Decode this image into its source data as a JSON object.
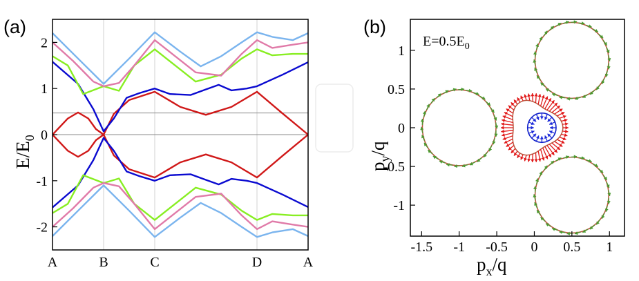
{
  "figure": {
    "panel_a_label": "(a)",
    "panel_b_label": "(b)"
  },
  "chart_data": [
    {
      "type": "line",
      "panel": "(a)",
      "title": "",
      "xlabel": "",
      "ylabel_main": "E/E",
      "ylabel_sub": "0",
      "x_ticks": [
        "A",
        "B",
        "C",
        "D",
        "A"
      ],
      "x_tick_positions": [
        0,
        1,
        2,
        4,
        5
      ],
      "xlim": [
        0,
        5
      ],
      "y_ticks": [
        -2,
        -1,
        0,
        1,
        2
      ],
      "ylim": [
        -2.5,
        2.5
      ],
      "vertical_grid_at": [
        1,
        2,
        4
      ],
      "horizontal_ref_lines": [
        0,
        0.47
      ],
      "series": [
        {
          "name": "band-red-upper",
          "color": "#d01818",
          "x": [
            0,
            0.3,
            0.5,
            0.7,
            0.85,
            1,
            1.2,
            1.5,
            2,
            2.5,
            3,
            3.5,
            4,
            4.5,
            5
          ],
          "y": [
            0,
            0.35,
            0.48,
            0.35,
            0.12,
            0,
            0.45,
            0.75,
            0.93,
            0.6,
            0.43,
            0.6,
            0.93,
            0.46,
            0
          ]
        },
        {
          "name": "band-red-lower",
          "color": "#d01818",
          "x": [
            0,
            0.3,
            0.5,
            0.7,
            0.85,
            1,
            1.2,
            1.5,
            2,
            2.5,
            3,
            3.5,
            4,
            4.5,
            5
          ],
          "y": [
            0,
            -0.35,
            -0.48,
            -0.35,
            -0.12,
            0,
            -0.45,
            -0.75,
            -0.93,
            -0.6,
            -0.43,
            -0.6,
            -0.93,
            -0.46,
            0
          ]
        },
        {
          "name": "band-blue-upper",
          "color": "#0a0ad0",
          "x": [
            0,
            0.5,
            0.8,
            1,
            1.2,
            1.45,
            1.7,
            2,
            2.3,
            2.7,
            3,
            3.25,
            3.5,
            3.8,
            4,
            4.5,
            5
          ],
          "y": [
            1.58,
            1.1,
            0.55,
            0.07,
            0.35,
            0.8,
            0.9,
            1.0,
            0.88,
            0.86,
            0.98,
            1.08,
            0.96,
            1.0,
            1.05,
            1.3,
            1.57
          ]
        },
        {
          "name": "band-blue-lower",
          "color": "#0a0ad0",
          "x": [
            0,
            0.5,
            0.8,
            1,
            1.2,
            1.45,
            1.7,
            2,
            2.3,
            2.7,
            3,
            3.25,
            3.5,
            3.8,
            4,
            4.5,
            5
          ],
          "y": [
            -1.58,
            -1.1,
            -0.55,
            -0.07,
            -0.35,
            -0.8,
            -0.9,
            -1.0,
            -0.88,
            -0.86,
            -0.98,
            -1.08,
            -0.96,
            -1.0,
            -1.05,
            -1.3,
            -1.57
          ]
        },
        {
          "name": "band-green-upper",
          "color": "#88ee22",
          "x": [
            0,
            0.3,
            0.6,
            1,
            1.3,
            1.6,
            2,
            2.4,
            2.8,
            3.3,
            3.7,
            4,
            4.3,
            4.7,
            5
          ],
          "y": [
            1.7,
            1.5,
            0.88,
            1.05,
            0.95,
            1.5,
            1.85,
            1.5,
            1.15,
            1.3,
            1.65,
            1.85,
            1.72,
            1.75,
            1.75
          ]
        },
        {
          "name": "band-green-lower",
          "color": "#88ee22",
          "x": [
            0,
            0.3,
            0.6,
            1,
            1.3,
            1.6,
            2,
            2.4,
            2.8,
            3.3,
            3.7,
            4,
            4.3,
            4.7,
            5
          ],
          "y": [
            -1.7,
            -1.5,
            -0.88,
            -1.05,
            -0.95,
            -1.5,
            -1.85,
            -1.5,
            -1.15,
            -1.3,
            -1.65,
            -1.85,
            -1.72,
            -1.75,
            -1.75
          ]
        },
        {
          "name": "band-pink-upper",
          "color": "#e07aa8",
          "x": [
            0,
            0.4,
            0.8,
            1,
            1.3,
            1.6,
            2,
            2.4,
            2.8,
            3.3,
            3.7,
            4,
            4.3,
            4.7,
            5
          ],
          "y": [
            2.0,
            1.6,
            1.15,
            1.05,
            1.12,
            1.5,
            2.05,
            1.7,
            1.35,
            1.28,
            1.75,
            2.05,
            1.88,
            1.95,
            2.0
          ]
        },
        {
          "name": "band-pink-lower",
          "color": "#e07aa8",
          "x": [
            0,
            0.4,
            0.8,
            1,
            1.3,
            1.6,
            2,
            2.4,
            2.8,
            3.3,
            3.7,
            4,
            4.3,
            4.7,
            5
          ],
          "y": [
            -2.0,
            -1.6,
            -1.15,
            -1.05,
            -1.12,
            -1.5,
            -2.05,
            -1.7,
            -1.35,
            -1.28,
            -1.75,
            -2.05,
            -1.88,
            -1.95,
            -2.0
          ]
        },
        {
          "name": "band-lightblue-upper",
          "color": "#7ab4ee",
          "x": [
            0,
            0.5,
            1,
            1.5,
            2,
            2.5,
            2.9,
            3.3,
            3.7,
            4,
            4.3,
            4.7,
            5
          ],
          "y": [
            2.2,
            1.65,
            1.1,
            1.65,
            2.22,
            1.8,
            1.48,
            1.7,
            2.0,
            2.22,
            2.12,
            2.05,
            2.2
          ]
        },
        {
          "name": "band-lightblue-lower",
          "color": "#7ab4ee",
          "x": [
            0,
            0.5,
            1,
            1.5,
            2,
            2.5,
            2.9,
            3.3,
            3.7,
            4,
            4.3,
            4.7,
            5
          ],
          "y": [
            -2.2,
            -1.65,
            -1.1,
            -1.65,
            -2.22,
            -1.8,
            -1.48,
            -1.7,
            -2.0,
            -2.22,
            -2.12,
            -2.05,
            -2.2
          ]
        }
      ]
    },
    {
      "type": "scatter",
      "panel": "(b)",
      "title": "",
      "annotation_main": "E=0.5E",
      "annotation_sub": "0",
      "xlabel_main": "p",
      "xlabel_sub": "x",
      "xlabel_tail": "/q",
      "ylabel_main": "p",
      "ylabel_sub": "y",
      "ylabel_tail": "/q",
      "x_ticks": [
        "-1.5",
        "-1",
        "-0.5",
        "0",
        "0.5",
        "1"
      ],
      "x_tick_values": [
        -1.5,
        -1,
        -0.5,
        0,
        0.5,
        1
      ],
      "y_ticks": [
        "-1",
        "-0.5",
        "0",
        "0.5",
        "1"
      ],
      "y_tick_values": [
        -1,
        -0.5,
        0,
        0.5,
        1
      ],
      "xlim": [
        -1.65,
        1.2
      ],
      "ylim": [
        -1.4,
        1.4
      ],
      "contours": [
        {
          "name": "outer-lobe-top",
          "color": "#b85a40",
          "center": [
            0.5,
            0.87
          ],
          "radius": 0.49,
          "arrow_color": "#4a9a30"
        },
        {
          "name": "outer-lobe-left",
          "color": "#b85a40",
          "center": [
            -1.0,
            0.0
          ],
          "radius": 0.49,
          "arrow_color": "#4a9a30"
        },
        {
          "name": "outer-lobe-bottom",
          "color": "#b85a40",
          "center": [
            0.5,
            -0.87
          ],
          "radius": 0.49,
          "arrow_color": "#4a9a30"
        },
        {
          "name": "middle-trefoil",
          "color": "#b85a40",
          "arrow_color": "#e01818",
          "base_radius": 0.33,
          "modulation": 0.05
        },
        {
          "name": "inner-loop",
          "color": "#1020c8",
          "center": [
            0.1,
            0.0
          ],
          "radius": 0.19,
          "arrow_color": "#1a28d8"
        }
      ]
    }
  ]
}
